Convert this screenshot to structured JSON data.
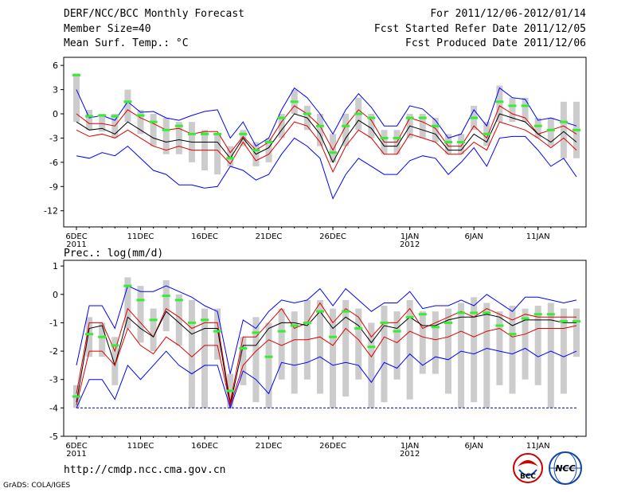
{
  "header": {
    "left": [
      "DERF/NCC/BCC Monthly Forecast",
      "Member Size=40",
      "Mean Surf. Temp.: °C"
    ],
    "right": [
      "For 2011/12/06-2012/01/14",
      "Fcst Started Refer Date 2011/12/05",
      "Fcst Produced Date 2011/12/06"
    ]
  },
  "prec_title": "Prec.: log(mm/d)",
  "footer": {
    "url": "http://cmdp.ncc.cma.gov.cn",
    "credit": "GrADS: COLA/IGES"
  },
  "logos": {
    "bcc": "BCC",
    "ncc": "NCC"
  },
  "x_ticks": [
    {
      "day": 0,
      "label": "6DEC",
      "sub": "2011"
    },
    {
      "day": 5,
      "label": "11DEC",
      "sub": ""
    },
    {
      "day": 10,
      "label": "16DEC",
      "sub": ""
    },
    {
      "day": 15,
      "label": "21DEC",
      "sub": ""
    },
    {
      "day": 20,
      "label": "26DEC",
      "sub": ""
    },
    {
      "day": 26,
      "label": "1JAN",
      "sub": "2012"
    },
    {
      "day": 31,
      "label": "6JAN",
      "sub": ""
    },
    {
      "day": 36,
      "label": "11JAN",
      "sub": ""
    }
  ],
  "colors": {
    "max_min": "#0000ff",
    "spread": "#dd0000",
    "mean": "#000000",
    "bar": "#cccccc",
    "obs": "#33ee33",
    "ref": "#0000cc"
  },
  "chart_data": [
    {
      "type": "line",
      "title": "Mean Surf. Temp.: °C",
      "ylim": [
        -14,
        7
      ],
      "yticks": [
        6,
        3,
        0,
        -3,
        -6,
        -9,
        -12
      ],
      "x": [
        0,
        1,
        2,
        3,
        4,
        5,
        6,
        7,
        8,
        9,
        10,
        11,
        12,
        13,
        14,
        15,
        16,
        17,
        18,
        19,
        20,
        21,
        22,
        23,
        24,
        25,
        26,
        27,
        28,
        29,
        30,
        31,
        32,
        33,
        34,
        35,
        36,
        37,
        38,
        39
      ],
      "series": [
        {
          "name": "max",
          "values": [
            3,
            -0.5,
            -0.2,
            -0.8,
            1.5,
            0.2,
            0.3,
            -0.5,
            -0.8,
            -0.2,
            0.3,
            0.5,
            -3,
            -1,
            -4,
            -3,
            0.5,
            3.2,
            2,
            0,
            -2.5,
            0.5,
            2.5,
            0.8,
            -1.5,
            -1.5,
            1,
            0.6,
            -0.8,
            -3,
            -2.5,
            0.5,
            -1.5,
            3.2,
            2,
            1.8,
            -0.8,
            -0.5,
            -1,
            -1.5
          ]
        },
        {
          "name": "spread_upper",
          "values": [
            0,
            -1.2,
            -1.2,
            -1.5,
            0.5,
            -0.5,
            -1.2,
            -2,
            -1.8,
            -2.5,
            -2.2,
            -2.2,
            -4.8,
            -2.8,
            -4.5,
            -3.5,
            -1,
            1,
            0,
            -1.5,
            -4.5,
            -1.5,
            0.5,
            -0.8,
            -3.5,
            -3.5,
            -0.5,
            -1,
            -1.8,
            -4,
            -4,
            -1.5,
            -3,
            1,
            0,
            -0.5,
            -2.5,
            -2,
            -1.5,
            -2.5
          ]
        },
        {
          "name": "mean",
          "values": [
            -1,
            -2,
            -1.8,
            -2.5,
            -1,
            -2,
            -3,
            -3.5,
            -3.2,
            -3.5,
            -3.5,
            -3.5,
            -5.5,
            -3,
            -5,
            -4.2,
            -2,
            0,
            -0.5,
            -2.5,
            -6,
            -3,
            -0.8,
            -1.8,
            -4,
            -4,
            -1.5,
            -2,
            -2.5,
            -4.5,
            -4.5,
            -2.5,
            -3.5,
            0,
            -0.5,
            -1,
            -2.5,
            -3.5,
            -2.2,
            -3.5
          ]
        },
        {
          "name": "spread_lower",
          "values": [
            -2,
            -2.8,
            -2.5,
            -3,
            -2,
            -3,
            -4,
            -4.5,
            -4,
            -4.5,
            -4.5,
            -4.5,
            -6.2,
            -3.5,
            -5.8,
            -5,
            -3,
            -1,
            -1.5,
            -3.5,
            -7.2,
            -4,
            -2,
            -3,
            -5,
            -5,
            -2.5,
            -3,
            -3.5,
            -5,
            -5,
            -3.5,
            -4.5,
            -1,
            -1.5,
            -2,
            -3,
            -4.2,
            -3,
            -4.5
          ]
        },
        {
          "name": "min",
          "values": [
            -5.2,
            -5.5,
            -4.8,
            -5.2,
            -4,
            -5.5,
            -7,
            -7.5,
            -8.8,
            -8.8,
            -9.2,
            -9,
            -6.5,
            -7,
            -8.2,
            -7.5,
            -5,
            -3,
            -4,
            -5.5,
            -10.5,
            -7.5,
            -5.5,
            -6.5,
            -7.5,
            -7.5,
            -5.8,
            -5.2,
            -5.5,
            -7.5,
            -6,
            -4.2,
            -6.5,
            -3,
            -2.8,
            -2.8,
            -4.5,
            -6.5,
            -5.5,
            -7.8
          ]
        }
      ],
      "bars": [
        {
          "low": -1,
          "high": 5
        },
        {
          "low": -2,
          "high": 0.5
        },
        {
          "low": -2.2,
          "high": 0
        },
        {
          "low": -3,
          "high": 0
        },
        {
          "low": -1,
          "high": 3
        },
        {
          "low": -2.5,
          "high": 0.5
        },
        {
          "low": -4,
          "high": 0
        },
        {
          "low": -5,
          "high": -0.5
        },
        {
          "low": -5,
          "high": -1
        },
        {
          "low": -6,
          "high": -1
        },
        {
          "low": -7,
          "high": -2
        },
        {
          "low": -7.5,
          "high": -2.5
        },
        {
          "low": -6.5,
          "high": -4
        },
        {
          "low": -4,
          "high": -2
        },
        {
          "low": -6.5,
          "high": -3.5
        },
        {
          "low": -6,
          "high": -3
        },
        {
          "low": -3,
          "high": 0
        },
        {
          "low": 0,
          "high": 3
        },
        {
          "low": -2,
          "high": 1
        },
        {
          "low": -4,
          "high": 0
        },
        {
          "low": -6,
          "high": -2.5
        },
        {
          "low": -4,
          "high": 0
        },
        {
          "low": -2,
          "high": 2
        },
        {
          "low": -3,
          "high": 0
        },
        {
          "low": -5,
          "high": -2
        },
        {
          "low": -5,
          "high": -2
        },
        {
          "low": -3,
          "high": 0
        },
        {
          "low": -3,
          "high": 0
        },
        {
          "low": -3.5,
          "high": -0.5
        },
        {
          "low": -5,
          "high": -2.5
        },
        {
          "low": -5,
          "high": -2.5
        },
        {
          "low": -2,
          "high": 1
        },
        {
          "low": -4,
          "high": -1
        },
        {
          "low": -1,
          "high": 3.5
        },
        {
          "low": -1,
          "high": 2
        },
        {
          "low": -1,
          "high": 2
        },
        {
          "low": -3,
          "high": -0.5
        },
        {
          "low": -4,
          "high": -0.5
        },
        {
          "low": -5.5,
          "high": 1.5
        },
        {
          "low": -5.5,
          "high": 1.5
        }
      ],
      "markers": [
        4.8,
        -0.3,
        -0.2,
        -0.3,
        1.5,
        -0.2,
        -1,
        -2,
        -1.5,
        -2.5,
        -2.5,
        -2.5,
        -5.5,
        -2.5,
        -4.5,
        -3.5,
        -0.5,
        1.5,
        0,
        -1.5,
        -4.8,
        -1.5,
        0,
        -0.5,
        -3,
        -3,
        -0.5,
        -0.5,
        -1.5,
        -3.5,
        -3.5,
        -0.5,
        -2.5,
        1.5,
        1,
        1,
        -1.5,
        -2,
        -1,
        -2
      ]
    },
    {
      "type": "line",
      "title": "Prec.: log(mm/d)",
      "ylim": [
        -5,
        1.2
      ],
      "yticks": [
        1,
        0,
        -1,
        -2,
        -3,
        -4,
        -5
      ],
      "x": [
        0,
        1,
        2,
        3,
        4,
        5,
        6,
        7,
        8,
        9,
        10,
        11,
        12,
        13,
        14,
        15,
        16,
        17,
        18,
        19,
        20,
        21,
        22,
        23,
        24,
        25,
        26,
        27,
        28,
        29,
        30,
        31,
        32,
        33,
        34,
        35,
        36,
        37,
        38,
        39
      ],
      "reference_line": -4,
      "series": [
        {
          "name": "max",
          "values": [
            -2.5,
            -0.4,
            -0.4,
            -1.2,
            0.3,
            0.1,
            0.1,
            0.3,
            0.1,
            -0.1,
            -0.4,
            -0.6,
            -2.8,
            -0.9,
            -1.2,
            -0.6,
            -0.2,
            -0.3,
            -0.2,
            0.2,
            -0.4,
            0.2,
            -0.2,
            -0.6,
            -0.3,
            -0.3,
            0.1,
            -0.5,
            -0.4,
            -0.4,
            -0.2,
            -0.4,
            0,
            -0.3,
            -0.6,
            -0.1,
            -0.1,
            -0.2,
            -0.3,
            -0.2
          ]
        },
        {
          "name": "spread_upper",
          "values": [
            -3.5,
            -1,
            -1,
            -2,
            -0.5,
            -1,
            -1.5,
            -0.5,
            -0.8,
            -1.2,
            -1,
            -1,
            -3.8,
            -1.5,
            -1.5,
            -1,
            -0.5,
            -1.2,
            -1,
            -0.3,
            -1,
            -0.5,
            -0.8,
            -1.5,
            -1,
            -1,
            -0.5,
            -1.2,
            -1,
            -0.8,
            -0.6,
            -0.8,
            -0.5,
            -0.7,
            -0.9,
            -0.7,
            -0.8,
            -0.8,
            -0.8,
            -0.8
          ]
        },
        {
          "name": "mean",
          "values": [
            -3.8,
            -1.2,
            -1.1,
            -2.5,
            -0.8,
            -1.2,
            -1.5,
            -0.6,
            -1,
            -1.4,
            -1.2,
            -1.2,
            -3.9,
            -1.8,
            -1.8,
            -1.2,
            -1,
            -1,
            -1.1,
            -0.6,
            -1.2,
            -0.8,
            -1.1,
            -1.7,
            -1.1,
            -1.2,
            -0.8,
            -1.1,
            -1.1,
            -0.9,
            -0.8,
            -0.8,
            -0.7,
            -0.8,
            -1.1,
            -0.9,
            -0.9,
            -0.9,
            -1,
            -1
          ]
        },
        {
          "name": "spread_lower",
          "values": [
            -3.9,
            -2,
            -2,
            -2.5,
            -1.2,
            -1.8,
            -2.1,
            -1.5,
            -1.8,
            -2.2,
            -1.8,
            -1.8,
            -3.9,
            -2.5,
            -2,
            -1.6,
            -1.8,
            -1.6,
            -1.6,
            -1.5,
            -1.8,
            -1.2,
            -1.6,
            -2.2,
            -1.5,
            -1.7,
            -1.3,
            -1.5,
            -1.6,
            -1.5,
            -1.3,
            -1.5,
            -1.3,
            -1.2,
            -1.5,
            -1.4,
            -1.2,
            -1.2,
            -1.2,
            -1.1
          ]
        },
        {
          "name": "min",
          "values": [
            -4,
            -3,
            -3,
            -3.7,
            -2.5,
            -3,
            -2.5,
            -2,
            -2.5,
            -2.8,
            -2.5,
            -2.5,
            -4,
            -2.7,
            -3,
            -3.5,
            -2.4,
            -2.5,
            -2.4,
            -2.2,
            -2.5,
            -2.4,
            -2.5,
            -3.1,
            -2.4,
            -2.6,
            -2.1,
            -2.5,
            -2.2,
            -2.3,
            -2,
            -2.1,
            -1.9,
            -2,
            -2.1,
            -1.9,
            -2.2,
            -2,
            -2.2,
            -2
          ]
        }
      ],
      "bars": [
        {
          "low": -4,
          "high": -3.2
        },
        {
          "low": -2.2,
          "high": -0.8
        },
        {
          "low": -2.2,
          "high": -1
        },
        {
          "low": -3.2,
          "high": -1.5
        },
        {
          "low": -1.2,
          "high": 0.6
        },
        {
          "low": -1.7,
          "high": 0.3
        },
        {
          "low": -2,
          "high": -0.5
        },
        {
          "low": -1.3,
          "high": 0.5
        },
        {
          "low": -1.8,
          "high": 0
        },
        {
          "low": -4,
          "high": -0.2
        },
        {
          "low": -4,
          "high": -0.5
        },
        {
          "low": -2.3,
          "high": -0.5
        },
        {
          "low": -4,
          "high": -2.8
        },
        {
          "low": -3.2,
          "high": -1.5
        },
        {
          "low": -3.8,
          "high": -0.8
        },
        {
          "low": -4,
          "high": -1
        },
        {
          "low": -3,
          "high": -0.5
        },
        {
          "low": -3.5,
          "high": -0.6
        },
        {
          "low": -3,
          "high": -0.2
        },
        {
          "low": -3.5,
          "high": -0.2
        },
        {
          "low": -4,
          "high": -0.5
        },
        {
          "low": -3.6,
          "high": -0.2
        },
        {
          "low": -3,
          "high": -0.5
        },
        {
          "low": -4,
          "high": -1
        },
        {
          "low": -3.8,
          "high": -0.4
        },
        {
          "low": -3,
          "high": -0.6
        },
        {
          "low": -3.7,
          "high": -0.2
        },
        {
          "low": -2.8,
          "high": -0.6
        },
        {
          "low": -2.8,
          "high": -0.6
        },
        {
          "low": -3.5,
          "high": -0.5
        },
        {
          "low": -4,
          "high": -0.3
        },
        {
          "low": -3.8,
          "high": -0.1
        },
        {
          "low": -4,
          "high": -0.3
        },
        {
          "low": -3.2,
          "high": -0.6
        },
        {
          "low": -3.5,
          "high": -0.4
        },
        {
          "low": -3,
          "high": -0.5
        },
        {
          "low": -3.2,
          "high": -0.4
        },
        {
          "low": -4,
          "high": -0.3
        },
        {
          "low": -3.5,
          "high": -0.5
        },
        {
          "low": -2.2,
          "high": -0.5
        }
      ],
      "markers": [
        -3.6,
        -1.4,
        -1.5,
        -1.8,
        0.3,
        -0.2,
        -0.9,
        -0.05,
        -0.2,
        -1,
        -0.9,
        -1.3,
        -3.4,
        -1.9,
        -1.35,
        -2.2,
        -1.3,
        -1.1,
        -1,
        -0.6,
        -1.5,
        -0.6,
        -1.2,
        -1.85,
        -1,
        -1.3,
        -0.8,
        -0.7,
        -1.15,
        -1,
        -0.65,
        -0.65,
        -0.65,
        -1.1,
        -1.4,
        -0.85,
        -0.7,
        -0.7,
        -0.95,
        -0.95
      ]
    }
  ]
}
